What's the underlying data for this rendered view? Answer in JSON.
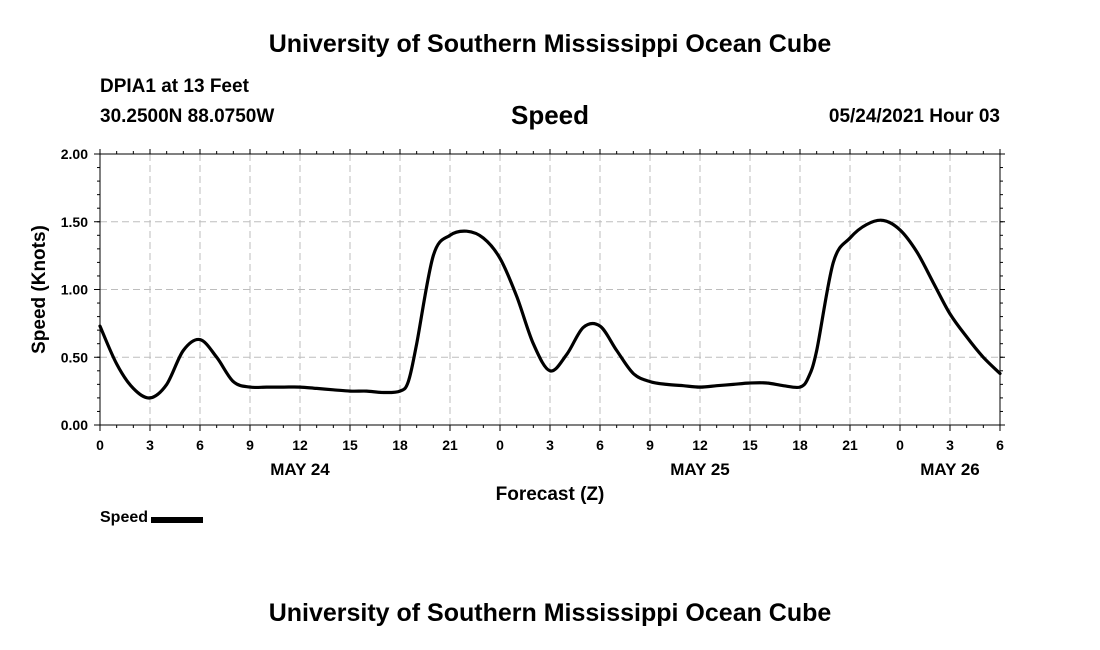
{
  "header": {
    "title": "University of Southern Mississippi Ocean Cube",
    "station": "DPIA1 at 13 Feet",
    "coords": "30.2500N  88.0750W",
    "run_time": "05/24/2021 Hour 03"
  },
  "footer": {
    "title": "University of Southern Mississippi Ocean Cube"
  },
  "chart_data": {
    "type": "line",
    "title": "Speed",
    "xlabel": "Forecast (Z)",
    "ylabel": "Speed (Knots)",
    "x_unit": "forecast hour",
    "xlim": [
      0,
      54
    ],
    "ylim": [
      0,
      2.0
    ],
    "grid": true,
    "legend_position": "bottom-left",
    "x_tick_values": [
      0,
      3,
      6,
      9,
      12,
      15,
      18,
      21,
      24,
      27,
      30,
      33,
      36,
      39,
      42,
      45,
      48,
      51,
      54
    ],
    "x_tick_labels": [
      "0",
      "3",
      "6",
      "9",
      "12",
      "15",
      "18",
      "21",
      "0",
      "3",
      "6",
      "9",
      "12",
      "15",
      "18",
      "21",
      "0",
      "3",
      "6"
    ],
    "y_tick_values": [
      0,
      0.5,
      1.0,
      1.5,
      2.0
    ],
    "y_tick_labels": [
      "0.00",
      "0.50",
      "1.00",
      "1.50",
      "2.00"
    ],
    "date_labels": [
      {
        "x": 12,
        "label": "MAY 24"
      },
      {
        "x": 36,
        "label": "MAY 25"
      },
      {
        "x": 51,
        "label": "MAY 26"
      }
    ],
    "series": [
      {
        "name": "Speed",
        "color": "#000000",
        "x": [
          0,
          1,
          2,
          3,
          4,
          5,
          6,
          7,
          8,
          9,
          10,
          11,
          12,
          13,
          14,
          15,
          16,
          17,
          18,
          18.5,
          19,
          20,
          21,
          22,
          23,
          24,
          25,
          26,
          27,
          28,
          29,
          30,
          31,
          32,
          33,
          34,
          35,
          36,
          37,
          38,
          39,
          40,
          41,
          42,
          42.5,
          43,
          44,
          45,
          46,
          47,
          48,
          49,
          50,
          51,
          52,
          53,
          54
        ],
        "values": [
          0.73,
          0.45,
          0.27,
          0.2,
          0.3,
          0.55,
          0.63,
          0.5,
          0.32,
          0.28,
          0.28,
          0.28,
          0.28,
          0.27,
          0.26,
          0.25,
          0.25,
          0.24,
          0.25,
          0.32,
          0.6,
          1.25,
          1.4,
          1.43,
          1.38,
          1.23,
          0.95,
          0.6,
          0.4,
          0.52,
          0.72,
          0.73,
          0.55,
          0.38,
          0.32,
          0.3,
          0.29,
          0.28,
          0.29,
          0.3,
          0.31,
          0.31,
          0.29,
          0.28,
          0.35,
          0.55,
          1.2,
          1.38,
          1.48,
          1.51,
          1.44,
          1.28,
          1.05,
          0.82,
          0.65,
          0.5,
          0.38
        ]
      }
    ]
  }
}
